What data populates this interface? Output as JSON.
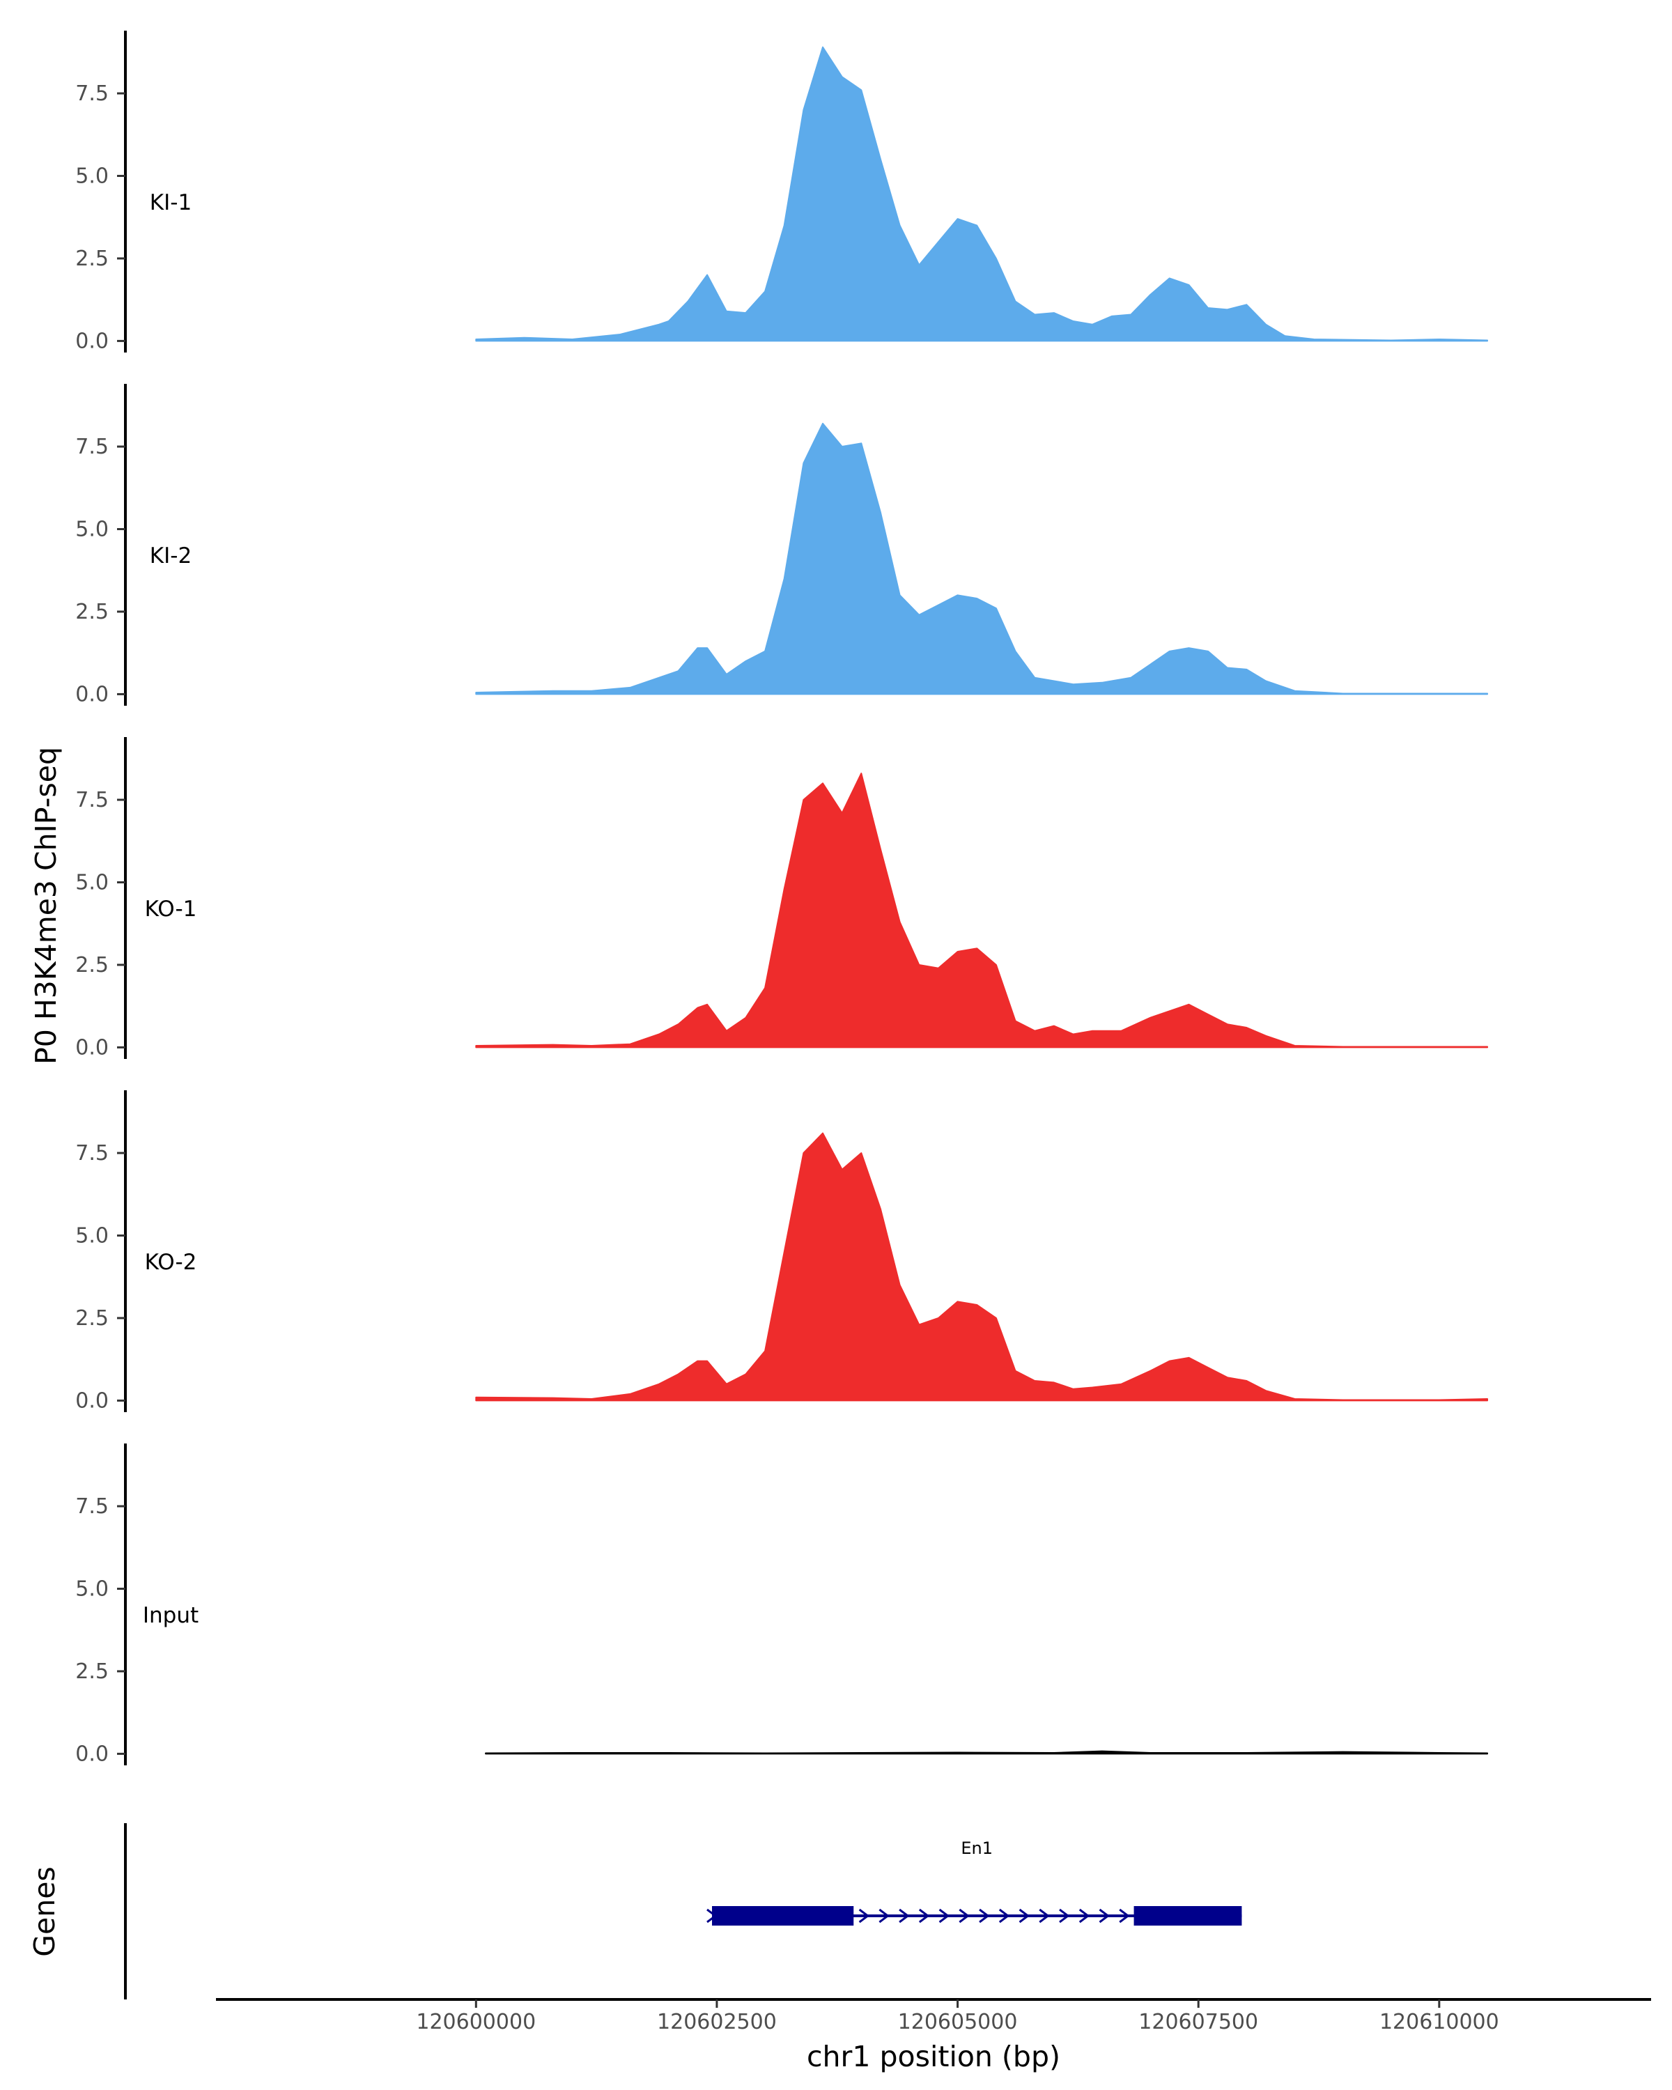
{
  "chart_data": {
    "type": "area",
    "title": "",
    "ylabel": "P0 H3K4me3 ChIP-seq",
    "xlabel": "chr1 position (bp)",
    "ylim": [
      -0.35,
      9.4
    ],
    "xlim": [
      120597300,
      120612200
    ],
    "y_ticks": [
      0,
      2.5,
      5,
      7.5
    ],
    "y_tick_labels": [
      "0.0",
      "2.5",
      "5.0",
      "7.5"
    ],
    "x_ticks": [
      120600000,
      120602500,
      120605000,
      120607500,
      120610000
    ],
    "x_tick_labels": [
      "120600000",
      "120602500",
      "120605000",
      "120607500",
      "120610000"
    ],
    "tracks": [
      {
        "name": "KI-1",
        "color": "#5dabeb",
        "points": [
          [
            120600000,
            0.05
          ],
          [
            120600500,
            0.1
          ],
          [
            120601000,
            0.05
          ],
          [
            120601500,
            0.2
          ],
          [
            120601900,
            0.5
          ],
          [
            120602000,
            0.6
          ],
          [
            120602200,
            1.2
          ],
          [
            120602400,
            2.0
          ],
          [
            120602600,
            0.9
          ],
          [
            120602800,
            0.85
          ],
          [
            120603000,
            1.5
          ],
          [
            120603200,
            3.5
          ],
          [
            120603400,
            7.0
          ],
          [
            120603600,
            8.9
          ],
          [
            120603800,
            8.0
          ],
          [
            120604000,
            7.6
          ],
          [
            120604200,
            5.5
          ],
          [
            120604400,
            3.5
          ],
          [
            120604600,
            2.3
          ],
          [
            120604800,
            3.0
          ],
          [
            120605000,
            3.7
          ],
          [
            120605200,
            3.5
          ],
          [
            120605400,
            2.5
          ],
          [
            120605600,
            1.2
          ],
          [
            120605800,
            0.8
          ],
          [
            120606000,
            0.85
          ],
          [
            120606200,
            0.6
          ],
          [
            120606400,
            0.5
          ],
          [
            120606600,
            0.75
          ],
          [
            120606800,
            0.8
          ],
          [
            120607000,
            1.4
          ],
          [
            120607200,
            1.9
          ],
          [
            120607400,
            1.7
          ],
          [
            120607600,
            1.0
          ],
          [
            120607800,
            0.95
          ],
          [
            120608000,
            1.1
          ],
          [
            120608200,
            0.5
          ],
          [
            120608400,
            0.15
          ],
          [
            120608700,
            0.05
          ],
          [
            120609500,
            0.02
          ],
          [
            120610000,
            0.05
          ],
          [
            120610500,
            0.02
          ]
        ]
      },
      {
        "name": "KI-2",
        "color": "#5dabeb",
        "points": [
          [
            120600000,
            0.05
          ],
          [
            120600800,
            0.1
          ],
          [
            120601200,
            0.1
          ],
          [
            120601600,
            0.2
          ],
          [
            120601900,
            0.5
          ],
          [
            120602100,
            0.7
          ],
          [
            120602300,
            1.4
          ],
          [
            120602400,
            1.4
          ],
          [
            120602600,
            0.6
          ],
          [
            120602800,
            1.0
          ],
          [
            120603000,
            1.3
          ],
          [
            120603200,
            3.5
          ],
          [
            120603400,
            7.0
          ],
          [
            120603600,
            8.2
          ],
          [
            120603800,
            7.5
          ],
          [
            120604000,
            7.6
          ],
          [
            120604200,
            5.5
          ],
          [
            120604400,
            3.0
          ],
          [
            120604600,
            2.4
          ],
          [
            120604800,
            2.7
          ],
          [
            120605000,
            3.0
          ],
          [
            120605200,
            2.9
          ],
          [
            120605400,
            2.6
          ],
          [
            120605600,
            1.3
          ],
          [
            120605800,
            0.5
          ],
          [
            120606200,
            0.3
          ],
          [
            120606500,
            0.35
          ],
          [
            120606800,
            0.5
          ],
          [
            120607000,
            0.9
          ],
          [
            120607200,
            1.3
          ],
          [
            120607400,
            1.4
          ],
          [
            120607600,
            1.3
          ],
          [
            120607800,
            0.8
          ],
          [
            120608000,
            0.75
          ],
          [
            120608200,
            0.4
          ],
          [
            120608500,
            0.1
          ],
          [
            120609000,
            0.02
          ],
          [
            120610000,
            0.02
          ],
          [
            120610500,
            0.02
          ]
        ]
      },
      {
        "name": "KO-1",
        "color": "#ee2c2c",
        "points": [
          [
            120600000,
            0.05
          ],
          [
            120600800,
            0.08
          ],
          [
            120601200,
            0.05
          ],
          [
            120601600,
            0.1
          ],
          [
            120601900,
            0.4
          ],
          [
            120602100,
            0.7
          ],
          [
            120602300,
            1.2
          ],
          [
            120602400,
            1.3
          ],
          [
            120602600,
            0.5
          ],
          [
            120602800,
            0.9
          ],
          [
            120603000,
            1.8
          ],
          [
            120603200,
            4.8
          ],
          [
            120603400,
            7.5
          ],
          [
            120603600,
            8.0
          ],
          [
            120603800,
            7.1
          ],
          [
            120604000,
            8.3
          ],
          [
            120604200,
            6.0
          ],
          [
            120604400,
            3.8
          ],
          [
            120604600,
            2.5
          ],
          [
            120604800,
            2.4
          ],
          [
            120605000,
            2.9
          ],
          [
            120605200,
            3.0
          ],
          [
            120605400,
            2.5
          ],
          [
            120605600,
            0.8
          ],
          [
            120605800,
            0.5
          ],
          [
            120606000,
            0.65
          ],
          [
            120606200,
            0.4
          ],
          [
            120606400,
            0.5
          ],
          [
            120606700,
            0.5
          ],
          [
            120607000,
            0.9
          ],
          [
            120607200,
            1.1
          ],
          [
            120607400,
            1.3
          ],
          [
            120607600,
            1.0
          ],
          [
            120607800,
            0.7
          ],
          [
            120608000,
            0.6
          ],
          [
            120608200,
            0.35
          ],
          [
            120608500,
            0.05
          ],
          [
            120609000,
            0.02
          ],
          [
            120610000,
            0.02
          ],
          [
            120610500,
            0.02
          ]
        ]
      },
      {
        "name": "KO-2",
        "color": "#ee2c2c",
        "points": [
          [
            120600000,
            0.1
          ],
          [
            120600800,
            0.08
          ],
          [
            120601200,
            0.05
          ],
          [
            120601600,
            0.2
          ],
          [
            120601900,
            0.5
          ],
          [
            120602100,
            0.8
          ],
          [
            120602300,
            1.2
          ],
          [
            120602400,
            1.2
          ],
          [
            120602600,
            0.5
          ],
          [
            120602800,
            0.8
          ],
          [
            120603000,
            1.5
          ],
          [
            120603200,
            4.5
          ],
          [
            120603400,
            7.5
          ],
          [
            120603600,
            8.1
          ],
          [
            120603800,
            7.0
          ],
          [
            120604000,
            7.5
          ],
          [
            120604200,
            5.8
          ],
          [
            120604400,
            3.5
          ],
          [
            120604600,
            2.3
          ],
          [
            120604800,
            2.5
          ],
          [
            120605000,
            3.0
          ],
          [
            120605200,
            2.9
          ],
          [
            120605400,
            2.5
          ],
          [
            120605600,
            0.9
          ],
          [
            120605800,
            0.6
          ],
          [
            120606000,
            0.55
          ],
          [
            120606200,
            0.35
          ],
          [
            120606400,
            0.4
          ],
          [
            120606700,
            0.5
          ],
          [
            120607000,
            0.9
          ],
          [
            120607200,
            1.2
          ],
          [
            120607400,
            1.3
          ],
          [
            120607600,
            1.0
          ],
          [
            120607800,
            0.7
          ],
          [
            120608000,
            0.6
          ],
          [
            120608200,
            0.3
          ],
          [
            120608500,
            0.05
          ],
          [
            120609000,
            0.02
          ],
          [
            120610000,
            0.02
          ],
          [
            120610500,
            0.05
          ]
        ]
      },
      {
        "name": "Input",
        "color": "#000000",
        "points": [
          [
            120600100,
            0.02
          ],
          [
            120601000,
            0.03
          ],
          [
            120602000,
            0.03
          ],
          [
            120603000,
            0.02
          ],
          [
            120604000,
            0.03
          ],
          [
            120605000,
            0.04
          ],
          [
            120606000,
            0.03
          ],
          [
            120606500,
            0.08
          ],
          [
            120607000,
            0.03
          ],
          [
            120608000,
            0.03
          ],
          [
            120609000,
            0.06
          ],
          [
            120610000,
            0.03
          ],
          [
            120610500,
            0.02
          ]
        ]
      }
    ],
    "genes_track": {
      "label": "Genes",
      "genes": [
        {
          "name": "En1",
          "color": "#00008b",
          "start": 120602450,
          "end": 120607950,
          "strand": "+",
          "exons": [
            [
              120602450,
              120603920
            ],
            [
              120606830,
              120607950
            ]
          ]
        }
      ]
    }
  }
}
